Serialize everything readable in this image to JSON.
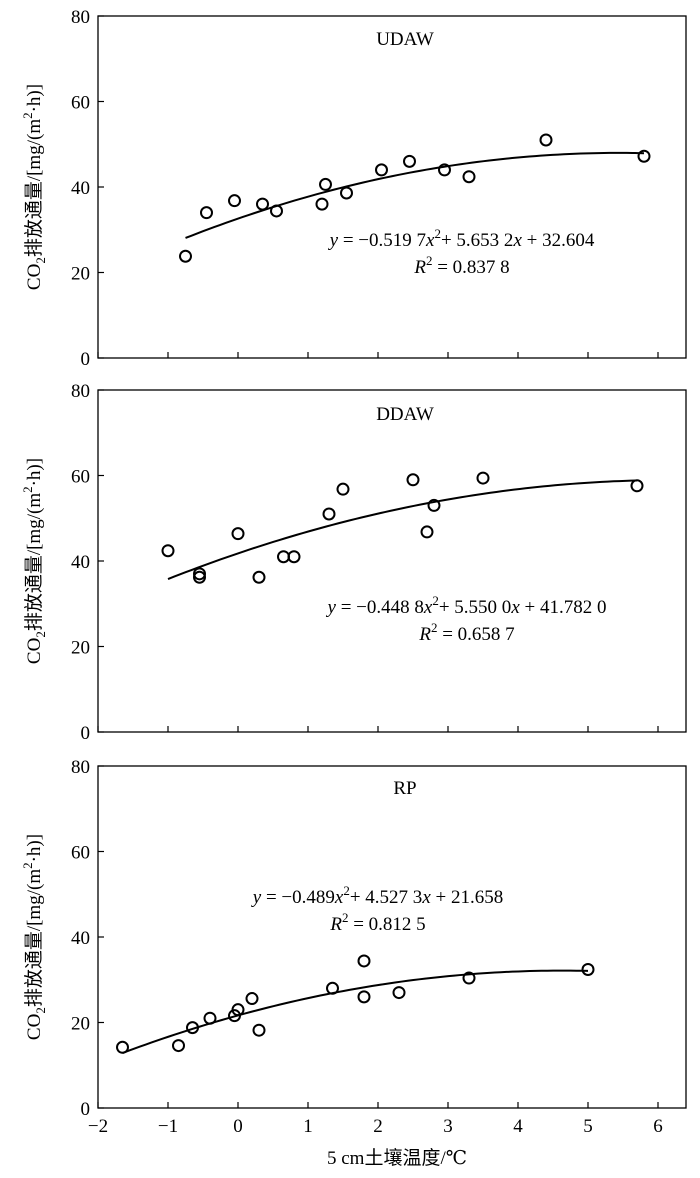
{
  "chart_data": [
    {
      "type": "scatter",
      "title": "UDAW",
      "ylabel_main": "CO",
      "ylabel_sub": "2",
      "ylabel_rest": "排放通量/[mg/(m",
      "ylabel_sup": "2",
      "ylabel_end": "·h)]",
      "ylim": [
        0,
        80
      ],
      "yticks": [
        "0",
        "20",
        "40",
        "60",
        "80"
      ],
      "xlim": [
        -2,
        6.4
      ],
      "x": [
        -0.75,
        -0.45,
        -0.05,
        0.35,
        0.55,
        1.2,
        1.25,
        1.55,
        2.05,
        2.45,
        2.95,
        3.3,
        4.4,
        5.8
      ],
      "y": [
        23.8,
        34.0,
        36.8,
        36.0,
        34.4,
        36.0,
        40.6,
        38.6,
        44.0,
        46.0,
        44.0,
        42.4,
        51.0,
        47.2
      ],
      "fit": {
        "a": -0.5197,
        "b": 5.6532,
        "c": 32.604,
        "x_from": -0.75,
        "x_to": 5.8
      },
      "equation": {
        "y": "y",
        "eq": " = −0.519 7",
        "x1": "x",
        "sup": "2",
        "rest": "+ 5.653 2",
        "x2": "x",
        "tail": " + 32.604"
      },
      "r2": {
        "r": "R",
        "sup": "2",
        "val": " = 0.837 8"
      }
    },
    {
      "type": "scatter",
      "title": "DDAW",
      "ylabel_main": "CO",
      "ylabel_sub": "2",
      "ylabel_rest": "排放通量/[mg/(m",
      "ylabel_sup": "2",
      "ylabel_end": "·h)]",
      "ylim": [
        0,
        80
      ],
      "yticks": [
        "0",
        "20",
        "40",
        "60",
        "80"
      ],
      "xlim": [
        -2,
        6.4
      ],
      "x": [
        -1.0,
        -0.55,
        -0.55,
        0.0,
        0.3,
        0.65,
        0.8,
        1.3,
        1.5,
        2.5,
        2.7,
        2.8,
        3.5,
        5.7
      ],
      "y": [
        42.4,
        37.0,
        36.2,
        46.4,
        36.2,
        41.0,
        41.0,
        51.0,
        56.8,
        59.0,
        46.8,
        53.0,
        59.4,
        57.6
      ],
      "fit": {
        "a": -0.4488,
        "b": 5.55,
        "c": 41.782,
        "x_from": -1.0,
        "x_to": 5.7
      },
      "equation": {
        "y": "y",
        "eq": " = −0.448 8",
        "x1": "x",
        "sup": "2",
        "rest": "+ 5.550 0",
        "x2": "x",
        "tail": " + 41.782 0"
      },
      "r2": {
        "r": "R",
        "sup": "2",
        "val": " = 0.658 7"
      }
    },
    {
      "type": "scatter",
      "title": "RP",
      "ylabel_main": "CO",
      "ylabel_sub": "2",
      "ylabel_rest": "排放通量/[mg/(m",
      "ylabel_sup": "2",
      "ylabel_end": "·h)]",
      "ylim": [
        0,
        80
      ],
      "yticks": [
        "0",
        "20",
        "40",
        "60",
        "80"
      ],
      "xlim": [
        -2,
        6.4
      ],
      "xticks": [
        "−2",
        "−1",
        "0",
        "1",
        "2",
        "3",
        "4",
        "5",
        "6"
      ],
      "xlabel": "5 cm土壤温度/℃",
      "x": [
        -1.65,
        -0.85,
        -0.65,
        -0.4,
        -0.05,
        0.0,
        0.2,
        0.3,
        1.35,
        1.8,
        1.8,
        2.3,
        3.3,
        5.0
      ],
      "y": [
        14.2,
        14.6,
        18.8,
        21.0,
        21.6,
        23.0,
        25.6,
        18.2,
        28.0,
        34.4,
        26.0,
        27.0,
        30.4,
        32.4
      ],
      "fit": {
        "a": -0.489,
        "b": 4.5273,
        "c": 21.658,
        "x_from": -1.65,
        "x_to": 5.0
      },
      "equation": {
        "y": "y",
        "eq": " = −0.489",
        "x1": "x",
        "sup": "2",
        "rest": "+ 4.527 3",
        "x2": "x",
        "tail": " + 21.658"
      },
      "r2": {
        "r": "R",
        "sup": "2",
        "val": " = 0.812 5"
      }
    }
  ]
}
